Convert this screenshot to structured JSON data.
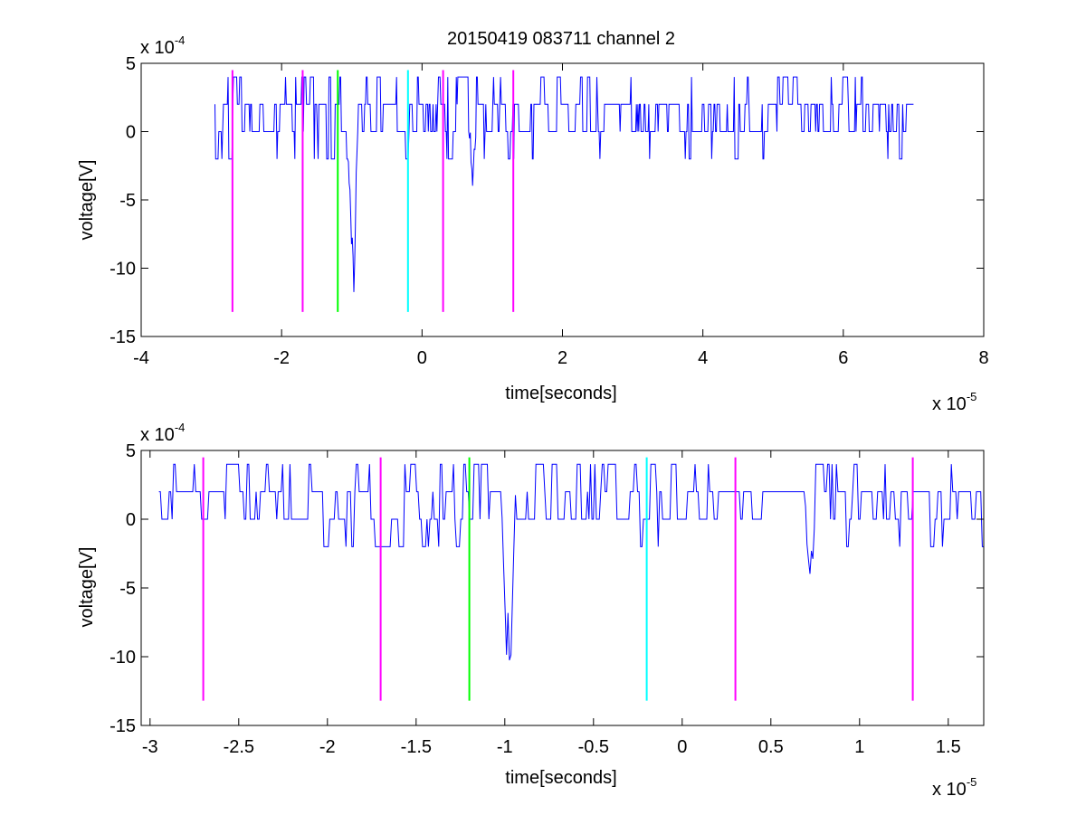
{
  "figure": {
    "title": "20150419 083711 channel 2"
  },
  "chart_data": [
    {
      "type": "line",
      "title": "20150419 083711 channel 2",
      "xlabel": "time[seconds]",
      "ylabel": "voltage[V]",
      "x_exponent": "x 10",
      "x_exponent_power": "-5",
      "y_exponent": "x 10",
      "y_exponent_power": "-4",
      "xlim": [
        -4,
        8
      ],
      "ylim": [
        -15,
        5
      ],
      "xticks": [
        -4,
        -2,
        0,
        2,
        4,
        6,
        8
      ],
      "xtick_labels": [
        "-4",
        "-2",
        "0",
        "2",
        "4",
        "6",
        "8"
      ],
      "yticks": [
        5,
        0,
        -5,
        -10,
        -15
      ],
      "ytick_labels": [
        "5",
        "0",
        "-5",
        "-10",
        "-15"
      ],
      "grid": false,
      "series": [
        {
          "color": "#0000ff",
          "x_range": [
            -2.95,
            7.0
          ],
          "baseline_levels": [
            2,
            0
          ],
          "occasional_levels": [
            4,
            -2
          ],
          "spikes": [
            {
              "x": -0.97,
              "y": -12
            },
            {
              "x": -1.0,
              "y": -9
            },
            {
              "x": 0.72,
              "y": -4
            }
          ]
        }
      ],
      "vlines": [
        {
          "x": -2.7,
          "color": "#ff00ff",
          "ymin": -13.2,
          "ymax": 4.5
        },
        {
          "x": -1.7,
          "color": "#ff00ff",
          "ymin": -13.2,
          "ymax": 4.5
        },
        {
          "x": -1.2,
          "color": "#00ff00",
          "ymin": -13.2,
          "ymax": 4.5
        },
        {
          "x": -0.2,
          "color": "#00ffff",
          "ymin": -13.2,
          "ymax": 4.5
        },
        {
          "x": 0.3,
          "color": "#ff00ff",
          "ymin": -13.2,
          "ymax": 4.5
        },
        {
          "x": 1.3,
          "color": "#ff00ff",
          "ymin": -13.2,
          "ymax": 4.5
        }
      ]
    },
    {
      "type": "line",
      "xlabel": "time[seconds]",
      "ylabel": "voltage[V]",
      "x_exponent": "x 10",
      "x_exponent_power": "-5",
      "y_exponent": "x 10",
      "y_exponent_power": "-4",
      "xlim": [
        -3.05,
        1.7
      ],
      "ylim": [
        -15,
        5
      ],
      "xticks": [
        -3,
        -2.5,
        -2,
        -1.5,
        -1,
        -0.5,
        0,
        0.5,
        1,
        1.5
      ],
      "xtick_labels": [
        "-3",
        "-2.5",
        "-2",
        "-1.5",
        "-1",
        "-0.5",
        "0",
        "0.5",
        "1",
        "1.5"
      ],
      "yticks": [
        5,
        0,
        -5,
        -10,
        -15
      ],
      "ytick_labels": [
        "5",
        "0",
        "-5",
        "-10",
        "-15"
      ],
      "grid": false,
      "series": [
        {
          "color": "#0000ff",
          "x_range": [
            -2.95,
            1.7
          ],
          "baseline_levels": [
            2,
            0
          ],
          "occasional_levels": [
            4,
            -2
          ],
          "spikes": [
            {
              "x": -0.99,
              "y": -10
            },
            {
              "x": -0.97,
              "y": -12
            },
            {
              "x": 0.72,
              "y": -4
            }
          ]
        }
      ],
      "vlines": [
        {
          "x": -2.7,
          "color": "#ff00ff",
          "ymin": -13.2,
          "ymax": 4.5
        },
        {
          "x": -1.7,
          "color": "#ff00ff",
          "ymin": -13.2,
          "ymax": 4.5
        },
        {
          "x": -1.2,
          "color": "#00ff00",
          "ymin": -13.2,
          "ymax": 4.5
        },
        {
          "x": -0.2,
          "color": "#00ffff",
          "ymin": -13.2,
          "ymax": 4.5
        },
        {
          "x": 0.3,
          "color": "#ff00ff",
          "ymin": -13.2,
          "ymax": 4.5
        },
        {
          "x": 1.3,
          "color": "#ff00ff",
          "ymin": -13.2,
          "ymax": 4.5
        }
      ]
    }
  ]
}
